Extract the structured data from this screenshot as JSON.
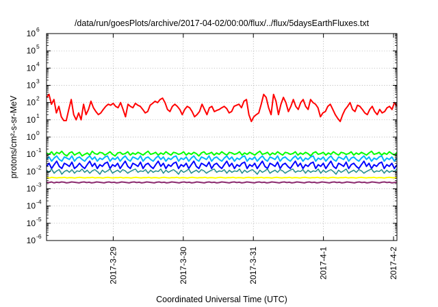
{
  "chart_data": {
    "type": "line",
    "title": "/data/run/goesPlots/archive/2017-04-02/00:00/flux/../flux/5daysEarthFluxes.txt",
    "xlabel": "Coordinated Universal Time (UTC)",
    "ylabel": "protons/cm²-s-sr-MeV",
    "yscale": "log",
    "ylim": [
      1e-06,
      1000000.0
    ],
    "y_ticks": [
      {
        "base": "10",
        "exp": "-6",
        "value": 1e-06
      },
      {
        "base": "10",
        "exp": "-5",
        "value": 1e-05
      },
      {
        "base": "10",
        "exp": "-4",
        "value": 0.0001
      },
      {
        "base": "10",
        "exp": "-3",
        "value": 0.001
      },
      {
        "base": "10",
        "exp": "-2",
        "value": 0.01
      },
      {
        "base": "10",
        "exp": "-1",
        "value": 0.1
      },
      {
        "base": "10",
        "exp": "0",
        "value": 1
      },
      {
        "base": "10",
        "exp": "1",
        "value": 10
      },
      {
        "base": "10",
        "exp": "2",
        "value": 100
      },
      {
        "base": "10",
        "exp": "3",
        "value": 1000
      },
      {
        "base": "10",
        "exp": "4",
        "value": 10000
      },
      {
        "base": "10",
        "exp": "5",
        "value": 100000
      },
      {
        "base": "10",
        "exp": "6",
        "value": 1000000
      }
    ],
    "xlim": [
      "2017-03-28T01:10",
      "2017-04-02T01:10"
    ],
    "x_ticks": [
      {
        "label": "2017-3-29",
        "date": "2017-03-29T00:00"
      },
      {
        "label": "2017-3-30",
        "date": "2017-03-30T00:00"
      },
      {
        "label": "2017-3-31",
        "date": "2017-03-31T00:00"
      },
      {
        "label": "2017-4-1",
        "date": "2017-04-01T00:00"
      },
      {
        "label": "2017-4-2",
        "date": "2017-04-02T00:00"
      }
    ],
    "grid": true,
    "series": [
      {
        "color": "#ff0000",
        "width": 2,
        "values": [
          200,
          300,
          80,
          150,
          25,
          60,
          15,
          9,
          9,
          40,
          150,
          20,
          10,
          25,
          10,
          80,
          20,
          40,
          120,
          50,
          30,
          20,
          25,
          40,
          60,
          80,
          70,
          90,
          60,
          50,
          100,
          40,
          15,
          80,
          60,
          50,
          90,
          70,
          60,
          40,
          25,
          30,
          70,
          90,
          120,
          100,
          150,
          180,
          100,
          40,
          30,
          60,
          80,
          60,
          40,
          20,
          40,
          60,
          50,
          30,
          15,
          20,
          30,
          80,
          40,
          20,
          50,
          60,
          30,
          35,
          40,
          50,
          60,
          45,
          25,
          30,
          60,
          70,
          80,
          50,
          120,
          150,
          20,
          8,
          15,
          20,
          25,
          80,
          300,
          200,
          50,
          20,
          300,
          120,
          20,
          80,
          200,
          100,
          30,
          60,
          150,
          60,
          40,
          100,
          150,
          60,
          40,
          150,
          100,
          80,
          50,
          15,
          25,
          30,
          60,
          80,
          40,
          20,
          12,
          8,
          20,
          40,
          60,
          100,
          40,
          30,
          70,
          60,
          40,
          25,
          20,
          40,
          60,
          30,
          20,
          40,
          25,
          30,
          50,
          60,
          40,
          100,
          60
        ]
      },
      {
        "color": "#00ff00",
        "width": 2,
        "values": [
          0.12,
          0.1,
          0.14,
          0.09,
          0.13,
          0.11,
          0.15,
          0.1,
          0.08,
          0.12,
          0.14,
          0.09,
          0.11,
          0.13,
          0.08,
          0.1,
          0.12,
          0.09,
          0.15,
          0.11,
          0.1,
          0.13,
          0.12,
          0.09,
          0.11,
          0.14,
          0.1,
          0.08,
          0.12,
          0.13,
          0.1,
          0.11,
          0.14,
          0.09,
          0.12,
          0.1,
          0.13,
          0.11,
          0.09,
          0.12,
          0.15,
          0.1,
          0.11,
          0.13,
          0.09,
          0.12,
          0.1,
          0.14,
          0.11,
          0.09,
          0.13,
          0.12,
          0.1,
          0.11,
          0.14,
          0.09,
          0.12,
          0.1,
          0.13,
          0.11,
          0.08,
          0.12,
          0.14,
          0.1,
          0.11,
          0.13,
          0.09,
          0.12,
          0.1,
          0.14,
          0.11,
          0.09,
          0.13,
          0.12,
          0.1,
          0.11,
          0.14,
          0.09,
          0.12,
          0.1,
          0.13,
          0.11,
          0.09,
          0.12,
          0.15,
          0.1,
          0.11,
          0.13,
          0.09,
          0.12,
          0.1,
          0.14,
          0.11,
          0.09,
          0.13,
          0.12,
          0.1,
          0.11,
          0.14,
          0.09,
          0.12,
          0.1,
          0.13,
          0.11,
          0.08,
          0.12,
          0.14,
          0.1,
          0.11,
          0.13,
          0.09,
          0.12,
          0.1,
          0.14,
          0.11,
          0.09,
          0.13,
          0.12,
          0.1,
          0.11,
          0.14,
          0.09,
          0.12,
          0.1,
          0.13,
          0.11,
          0.09,
          0.12,
          0.15,
          0.1,
          0.11,
          0.13,
          0.09,
          0.12,
          0.1,
          0.14,
          0.11,
          0.09,
          0.13
        ]
      },
      {
        "color": "#00b0ff",
        "width": 2,
        "values": [
          0.05,
          0.07,
          0.04,
          0.06,
          0.08,
          0.05,
          0.04,
          0.07,
          0.06,
          0.05,
          0.08,
          0.04,
          0.06,
          0.07,
          0.05,
          0.04,
          0.06,
          0.08,
          0.05,
          0.07,
          0.04,
          0.06,
          0.05,
          0.07,
          0.08,
          0.04,
          0.06,
          0.05,
          0.07,
          0.04,
          0.06,
          0.08,
          0.05,
          0.04,
          0.07,
          0.06,
          0.05,
          0.08,
          0.04,
          0.06,
          0.07,
          0.05,
          0.04,
          0.06,
          0.08,
          0.05,
          0.07,
          0.04,
          0.06,
          0.05,
          0.07,
          0.08,
          0.04,
          0.06,
          0.05,
          0.07,
          0.04,
          0.06,
          0.08,
          0.05,
          0.04,
          0.07,
          0.06,
          0.05,
          0.08,
          0.04,
          0.06,
          0.07,
          0.05,
          0.04,
          0.06,
          0.08,
          0.05,
          0.07,
          0.04,
          0.06,
          0.05,
          0.07,
          0.08,
          0.04,
          0.06,
          0.05,
          0.07,
          0.04,
          0.06,
          0.08,
          0.05,
          0.04,
          0.07,
          0.06,
          0.05,
          0.08,
          0.04,
          0.06,
          0.07,
          0.05,
          0.04,
          0.06,
          0.08,
          0.05,
          0.07,
          0.04,
          0.06,
          0.05,
          0.07,
          0.08,
          0.04,
          0.06,
          0.05,
          0.07,
          0.04,
          0.06,
          0.08,
          0.05,
          0.04,
          0.07,
          0.06,
          0.05,
          0.08,
          0.04,
          0.06,
          0.07,
          0.05,
          0.04,
          0.06,
          0.08,
          0.05,
          0.07,
          0.04,
          0.06,
          0.05,
          0.07,
          0.08,
          0.04,
          0.06,
          0.05,
          0.07,
          0.04,
          0.06
        ]
      },
      {
        "color": "#0000ff",
        "width": 2,
        "values": [
          0.02,
          0.03,
          0.015,
          0.025,
          0.04,
          0.02,
          0.015,
          0.03,
          0.025,
          0.02,
          0.035,
          0.015,
          0.02,
          0.03,
          0.02,
          0.015,
          0.025,
          0.04,
          0.02,
          0.03,
          0.015,
          0.025,
          0.02,
          0.03,
          0.035,
          0.015,
          0.025,
          0.02,
          0.03,
          0.015,
          0.025,
          0.04,
          0.02,
          0.015,
          0.03,
          0.025,
          0.02,
          0.035,
          0.015,
          0.025,
          0.03,
          0.02,
          0.015,
          0.025,
          0.04,
          0.02,
          0.03,
          0.015,
          0.025,
          0.02,
          0.03,
          0.035,
          0.015,
          0.025,
          0.02,
          0.03,
          0.015,
          0.025,
          0.04,
          0.02,
          0.015,
          0.03,
          0.025,
          0.02,
          0.035,
          0.015,
          0.025,
          0.03,
          0.02,
          0.015,
          0.025,
          0.04,
          0.02,
          0.03,
          0.015,
          0.025,
          0.02,
          0.03,
          0.035,
          0.015,
          0.025,
          0.02,
          0.03,
          0.015,
          0.025,
          0.04,
          0.02,
          0.015,
          0.03,
          0.025,
          0.02,
          0.035,
          0.015,
          0.025,
          0.03,
          0.02,
          0.015,
          0.025,
          0.04,
          0.02,
          0.03,
          0.015,
          0.025,
          0.02,
          0.03,
          0.035,
          0.015,
          0.025,
          0.02,
          0.03,
          0.015,
          0.025,
          0.04,
          0.02,
          0.015,
          0.03,
          0.025,
          0.02,
          0.035,
          0.015,
          0.025,
          0.03,
          0.02,
          0.015,
          0.025,
          0.04,
          0.02,
          0.03,
          0.015,
          0.025,
          0.02,
          0.03,
          0.035,
          0.015,
          0.025,
          0.02,
          0.03,
          0.015,
          0.025
        ]
      },
      {
        "color": "#1e8c8c",
        "width": 1.5,
        "values": [
          0.012,
          0.009,
          0.014,
          0.008,
          0.011,
          0.013,
          0.007,
          0.01,
          0.012,
          0.009,
          0.013,
          0.008,
          0.011,
          0.01,
          0.014,
          0.009,
          0.012,
          0.008,
          0.011,
          0.013,
          0.01,
          0.007,
          0.012,
          0.009,
          0.011,
          0.014,
          0.008,
          0.01,
          0.012,
          0.009,
          0.013,
          0.011,
          0.008,
          0.01,
          0.012,
          0.014,
          0.009,
          0.011,
          0.01,
          0.013,
          0.008,
          0.012,
          0.009,
          0.011,
          0.01,
          0.014,
          0.008,
          0.012,
          0.009,
          0.011,
          0.013,
          0.01,
          0.007,
          0.012,
          0.009,
          0.011,
          0.014,
          0.008,
          0.01,
          0.012,
          0.009,
          0.013,
          0.011,
          0.008,
          0.01,
          0.012,
          0.014,
          0.009,
          0.011,
          0.01,
          0.013,
          0.008,
          0.012,
          0.009,
          0.011,
          0.01,
          0.014,
          0.008,
          0.012,
          0.009,
          0.011,
          0.013,
          0.01,
          0.007,
          0.012,
          0.009,
          0.011,
          0.014,
          0.008,
          0.01,
          0.012,
          0.009,
          0.013,
          0.011,
          0.008,
          0.01,
          0.012,
          0.014,
          0.009,
          0.011,
          0.01,
          0.013,
          0.008,
          0.012,
          0.009,
          0.011,
          0.01,
          0.014,
          0.008,
          0.012,
          0.009,
          0.011,
          0.013,
          0.01,
          0.007,
          0.012,
          0.009,
          0.011,
          0.014,
          0.008,
          0.01,
          0.012,
          0.009,
          0.013,
          0.011,
          0.008,
          0.01,
          0.012,
          0.014,
          0.009,
          0.011,
          0.01,
          0.013,
          0.008,
          0.012,
          0.009,
          0.011,
          0.01,
          0.014
        ]
      },
      {
        "color": "#ffff00",
        "width": 2,
        "values": [
          0.0045,
          0.0042,
          0.0046,
          0.0044,
          0.0043,
          0.0045,
          0.0044,
          0.0046,
          0.0043,
          0.0045,
          0.0044,
          0.0042,
          0.0045,
          0.0046,
          0.0044,
          0.0043,
          0.0045,
          0.0044,
          0.0046,
          0.0043,
          0.0045,
          0.0044,
          0.0042,
          0.0045,
          0.0046,
          0.0044,
          0.0043,
          0.0045,
          0.0044,
          0.0046,
          0.0043,
          0.0045,
          0.0044,
          0.0042,
          0.0045,
          0.0046,
          0.0044,
          0.0043,
          0.0045,
          0.0044,
          0.0046,
          0.0043,
          0.0045,
          0.0044,
          0.0042,
          0.0045,
          0.0046,
          0.0044,
          0.0043,
          0.0045,
          0.0044,
          0.0046,
          0.0043,
          0.0045,
          0.0044,
          0.0042,
          0.0045,
          0.0046,
          0.0044,
          0.0043,
          0.0045,
          0.0044,
          0.0046,
          0.0043,
          0.0045,
          0.0044,
          0.0042,
          0.0045,
          0.0046,
          0.0044,
          0.0043,
          0.0045,
          0.0044,
          0.0046,
          0.0043,
          0.0045,
          0.0044,
          0.0042,
          0.0045,
          0.0046,
          0.0044,
          0.0043,
          0.0045,
          0.0044,
          0.0046,
          0.0043,
          0.0045,
          0.0044,
          0.0042,
          0.0045,
          0.0046,
          0.0044,
          0.0043,
          0.0045,
          0.0044,
          0.0046,
          0.0043,
          0.0045,
          0.0044,
          0.0042,
          0.0045,
          0.0046,
          0.0044,
          0.0043,
          0.0045,
          0.0044,
          0.0046,
          0.0043,
          0.0045,
          0.0044,
          0.0042,
          0.0045,
          0.0046,
          0.0044,
          0.0043,
          0.0045,
          0.0044,
          0.0046,
          0.0043,
          0.0045,
          0.0044,
          0.0042,
          0.0045,
          0.0046,
          0.0044,
          0.0043,
          0.0045,
          0.0044,
          0.0046,
          0.0043,
          0.0045,
          0.0044,
          0.0042,
          0.0045,
          0.0046,
          0.0044,
          0.0043,
          0.0045
        ]
      },
      {
        "color": "#8b2a6e",
        "width": 2,
        "values": [
          0.0024,
          0.0023,
          0.0025,
          0.0022,
          0.0024,
          0.0023,
          0.0025,
          0.0024,
          0.0022,
          0.0023,
          0.0025,
          0.0024,
          0.0023,
          0.0022,
          0.0024,
          0.0025,
          0.0023,
          0.0024,
          0.0022,
          0.0023,
          0.0025,
          0.0024,
          0.0023,
          0.0022,
          0.0024,
          0.0025,
          0.0023,
          0.0024,
          0.0022,
          0.0023,
          0.0025,
          0.0024,
          0.0023,
          0.0022,
          0.0024,
          0.0025,
          0.0023,
          0.0024,
          0.0022,
          0.0023,
          0.0025,
          0.0024,
          0.0023,
          0.0022,
          0.0024,
          0.0025,
          0.0023,
          0.0024,
          0.0022,
          0.0023,
          0.0025,
          0.0024,
          0.0023,
          0.0022,
          0.0024,
          0.0025,
          0.0023,
          0.0024,
          0.0022,
          0.0023,
          0.0025,
          0.0024,
          0.0023,
          0.0022,
          0.0024,
          0.0025,
          0.0023,
          0.0024,
          0.0022,
          0.0023,
          0.0025,
          0.0024,
          0.0023,
          0.0022,
          0.0024,
          0.0025,
          0.0023,
          0.0024,
          0.0022,
          0.0023,
          0.0025,
          0.0024,
          0.0023,
          0.0022,
          0.0024,
          0.0025,
          0.0023,
          0.0024,
          0.0022,
          0.0023,
          0.0025,
          0.0024,
          0.0023,
          0.0022,
          0.0024,
          0.0025,
          0.0023,
          0.0024,
          0.0022,
          0.0023,
          0.0025,
          0.0024,
          0.0023,
          0.0022,
          0.0024,
          0.0025,
          0.0023,
          0.0024,
          0.0022,
          0.0023,
          0.0025,
          0.0024,
          0.0023,
          0.0022,
          0.0024,
          0.0025,
          0.0023,
          0.0024,
          0.0022,
          0.0023,
          0.0025,
          0.0024,
          0.0023,
          0.0022,
          0.0024,
          0.0025,
          0.0023,
          0.0024,
          0.0022,
          0.0023,
          0.0025,
          0.0024,
          0.0023,
          0.0022,
          0.0024,
          0.0025,
          0.0023,
          0.0024,
          0.0022,
          0.0023,
          0.0025
        ]
      }
    ]
  }
}
